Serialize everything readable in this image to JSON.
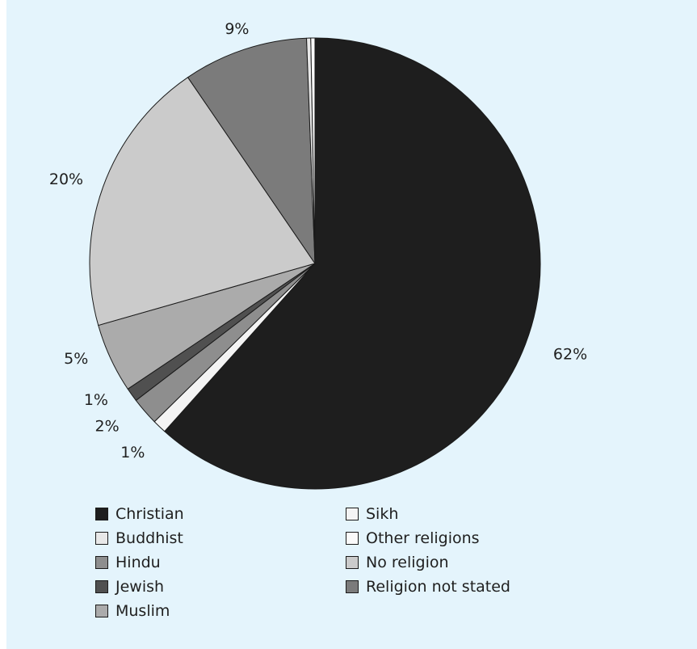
{
  "chart_data": {
    "type": "pie",
    "title": "",
    "start_angle_deg": 0,
    "direction": "clockwise",
    "slices": [
      {
        "label": "Christian",
        "value": 62,
        "display": "62%",
        "color": "#1e1e1e"
      },
      {
        "label": "Sikh",
        "value": 1,
        "display": "1%",
        "color": "#f4f4f4"
      },
      {
        "label": "Hindu",
        "value": 2,
        "display": "2%",
        "color": "#8e8e8e"
      },
      {
        "label": "Jewish",
        "value": 1,
        "display": "1%",
        "color": "#505050"
      },
      {
        "label": "Muslim",
        "value": 5,
        "display": "5%",
        "color": "#ababab"
      },
      {
        "label": "No religion",
        "value": 20,
        "display": "20%",
        "color": "#cbcbcb"
      },
      {
        "label": "Religion not stated",
        "value": 9,
        "display": "9%",
        "color": "#7b7b7b"
      },
      {
        "label": "Buddhist",
        "value": 0.3,
        "display": "",
        "color": "#e8e8e8"
      },
      {
        "label": "Other religions",
        "value": 0.3,
        "display": "",
        "color": "#fafafa"
      }
    ],
    "legend": {
      "placement": "bottom",
      "columns": [
        [
          {
            "label": "Christian",
            "color": "#1e1e1e"
          },
          {
            "label": "Buddhist",
            "color": "#e8e8e8"
          },
          {
            "label": "Hindu",
            "color": "#8e8e8e"
          },
          {
            "label": "Jewish",
            "color": "#505050"
          },
          {
            "label": "Muslim",
            "color": "#ababab"
          }
        ],
        [
          {
            "label": "Sikh",
            "color": "#f4f4f4"
          },
          {
            "label": "Other religions",
            "color": "#fafafa"
          },
          {
            "label": "No religion",
            "color": "#cbcbcb"
          },
          {
            "label": "Religion not stated",
            "color": "#7b7b7b"
          }
        ]
      ]
    }
  }
}
